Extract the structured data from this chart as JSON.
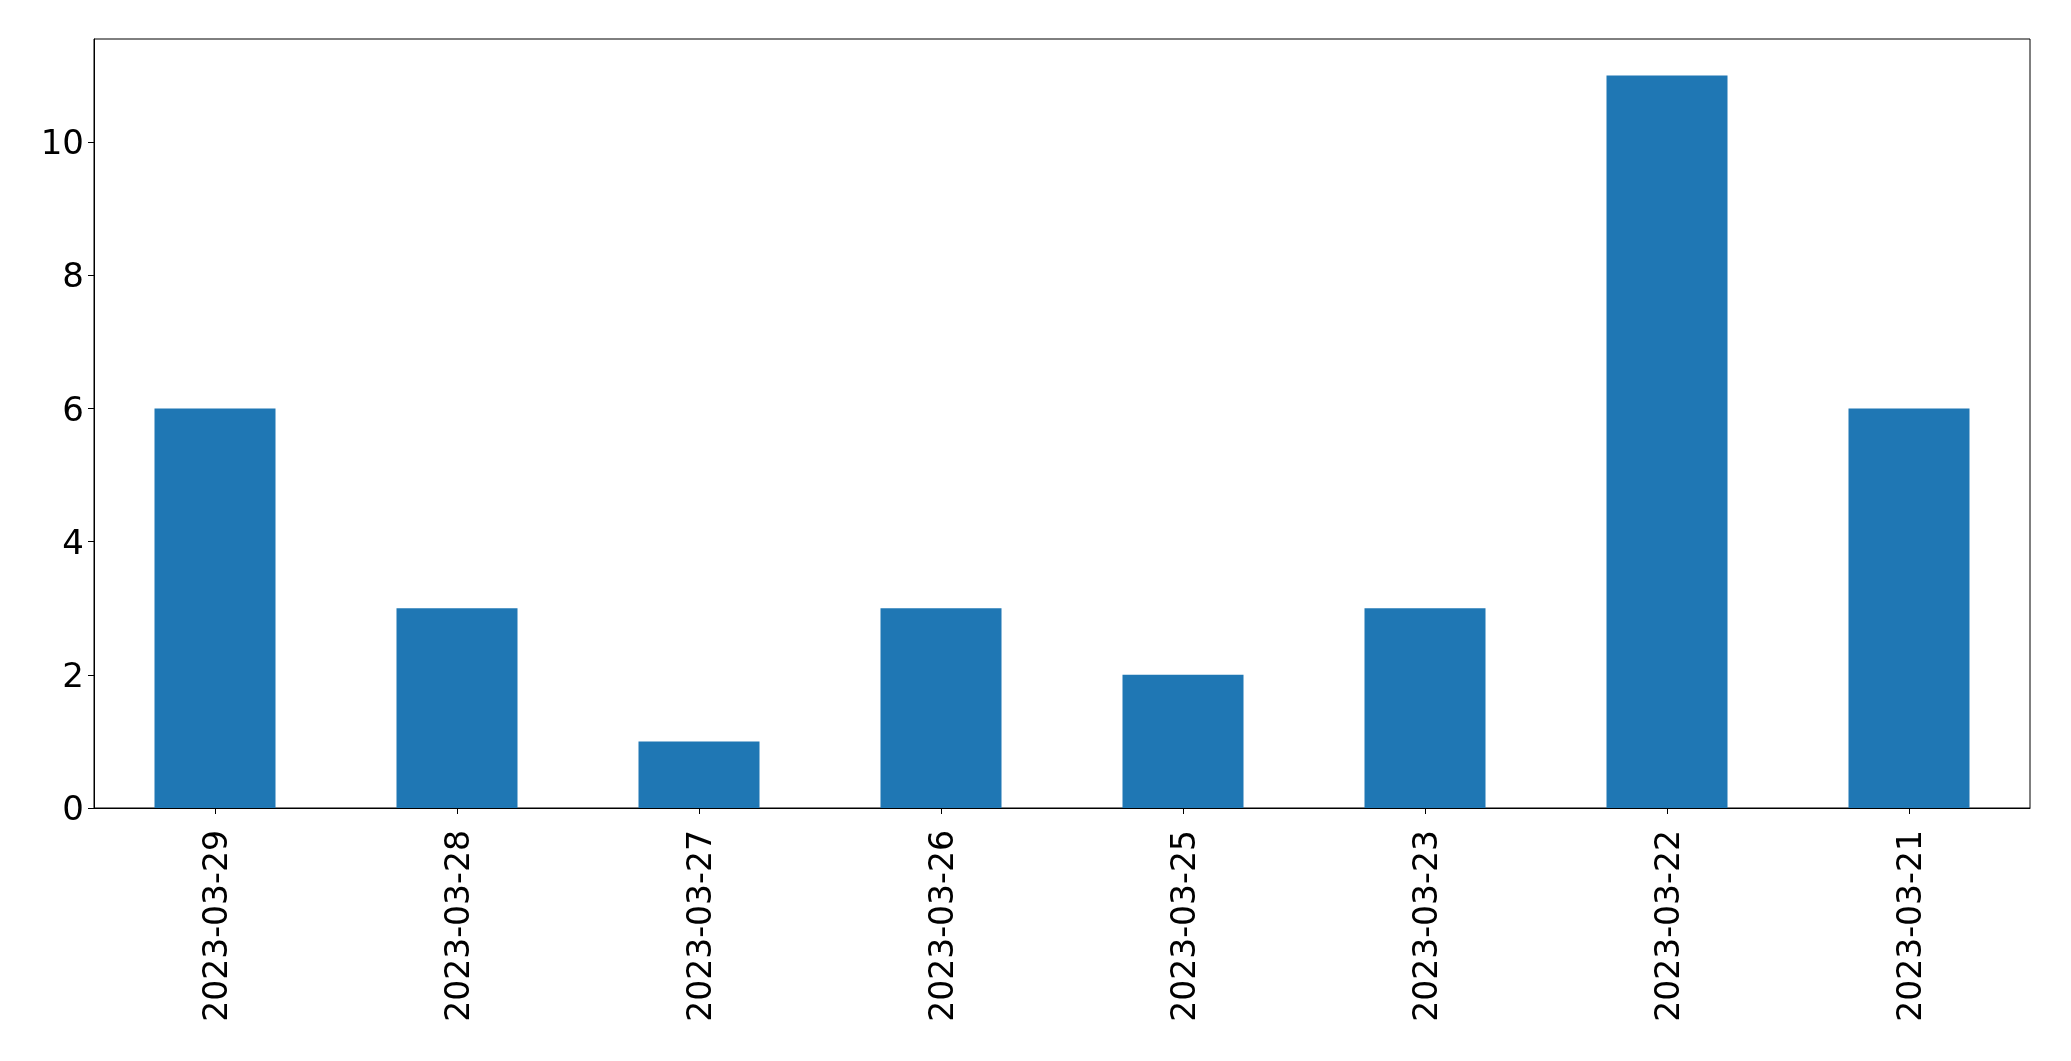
{
  "chart_data": {
    "type": "bar",
    "categories": [
      "2023-03-29",
      "2023-03-28",
      "2023-03-27",
      "2023-03-26",
      "2023-03-25",
      "2023-03-23",
      "2023-03-22",
      "2023-03-21"
    ],
    "values": [
      6,
      3,
      1,
      3,
      2,
      3,
      11,
      6
    ],
    "color": "#1f77b4",
    "ylim": [
      0,
      11.55
    ],
    "yticks": [
      0,
      2,
      4,
      6,
      8,
      10
    ]
  }
}
